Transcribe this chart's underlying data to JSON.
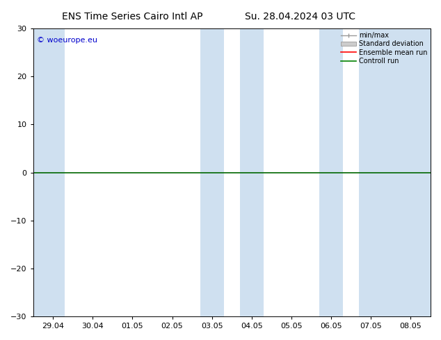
{
  "title_left": "ENS Time Series Cairo Intl AP",
  "title_right": "Su. 28.04.2024 03 UTC",
  "ylim": [
    -30,
    30
  ],
  "yticks": [
    -30,
    -20,
    -10,
    0,
    10,
    20,
    30
  ],
  "xtick_labels": [
    "29.04",
    "30.04",
    "01.05",
    "02.05",
    "03.05",
    "04.05",
    "05.05",
    "06.05",
    "07.05",
    "08.05"
  ],
  "background_color": "#ffffff",
  "plot_bg_color": "#ffffff",
  "shaded_band_color": "#cfe0f0",
  "legend_items": [
    {
      "label": "min/max",
      "color": "#aaaaaa",
      "style": "errorbar"
    },
    {
      "label": "Standard deviation",
      "color": "#cccccc",
      "style": "bar"
    },
    {
      "label": "Ensemble mean run",
      "color": "#ff0000",
      "style": "line"
    },
    {
      "label": "Controll run",
      "color": "#008000",
      "style": "line"
    }
  ],
  "watermark": "© woeurope.eu",
  "watermark_color": "#0000cc",
  "shaded_ranges": [
    [
      -0.5,
      0.3
    ],
    [
      3.7,
      4.3
    ],
    [
      4.7,
      5.3
    ],
    [
      6.7,
      7.3
    ],
    [
      7.7,
      9.5
    ]
  ],
  "zero_line_color": "#006600",
  "figsize": [
    6.34,
    4.9
  ],
  "dpi": 100,
  "title_fontsize": 10,
  "tick_fontsize": 8,
  "watermark_fontsize": 8,
  "legend_fontsize": 7
}
